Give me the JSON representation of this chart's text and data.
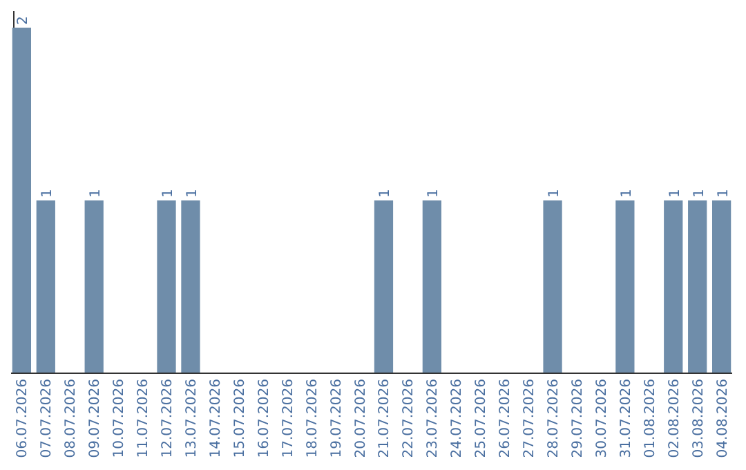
{
  "chart_data": {
    "type": "bar",
    "categories": [
      "06.07.2026",
      "07.07.2026",
      "08.07.2026",
      "09.07.2026",
      "10.07.2026",
      "11.07.2026",
      "12.07.2026",
      "13.07.2026",
      "14.07.2026",
      "15.07.2026",
      "16.07.2026",
      "17.07.2026",
      "18.07.2026",
      "19.07.2026",
      "20.07.2026",
      "21.07.2026",
      "22.07.2026",
      "23.07.2026",
      "24.07.2026",
      "25.07.2026",
      "26.07.2026",
      "27.07.2026",
      "28.07.2026",
      "29.07.2026",
      "30.07.2026",
      "31.07.2026",
      "01.08.2026",
      "02.08.2026",
      "03.08.2026",
      "04.08.2026"
    ],
    "values": [
      2,
      1,
      0,
      1,
      0,
      0,
      1,
      1,
      0,
      0,
      0,
      0,
      0,
      0,
      0,
      1,
      0,
      1,
      0,
      0,
      0,
      0,
      1,
      0,
      0,
      1,
      0,
      1,
      1,
      1
    ],
    "value_labels": [
      "2",
      "1",
      null,
      "1",
      null,
      null,
      "1",
      "1",
      null,
      null,
      null,
      null,
      null,
      null,
      null,
      "1",
      null,
      "1",
      null,
      null,
      null,
      null,
      "1",
      null,
      null,
      "1",
      null,
      "1",
      "1",
      "1"
    ],
    "color": "#6f8daa"
  }
}
